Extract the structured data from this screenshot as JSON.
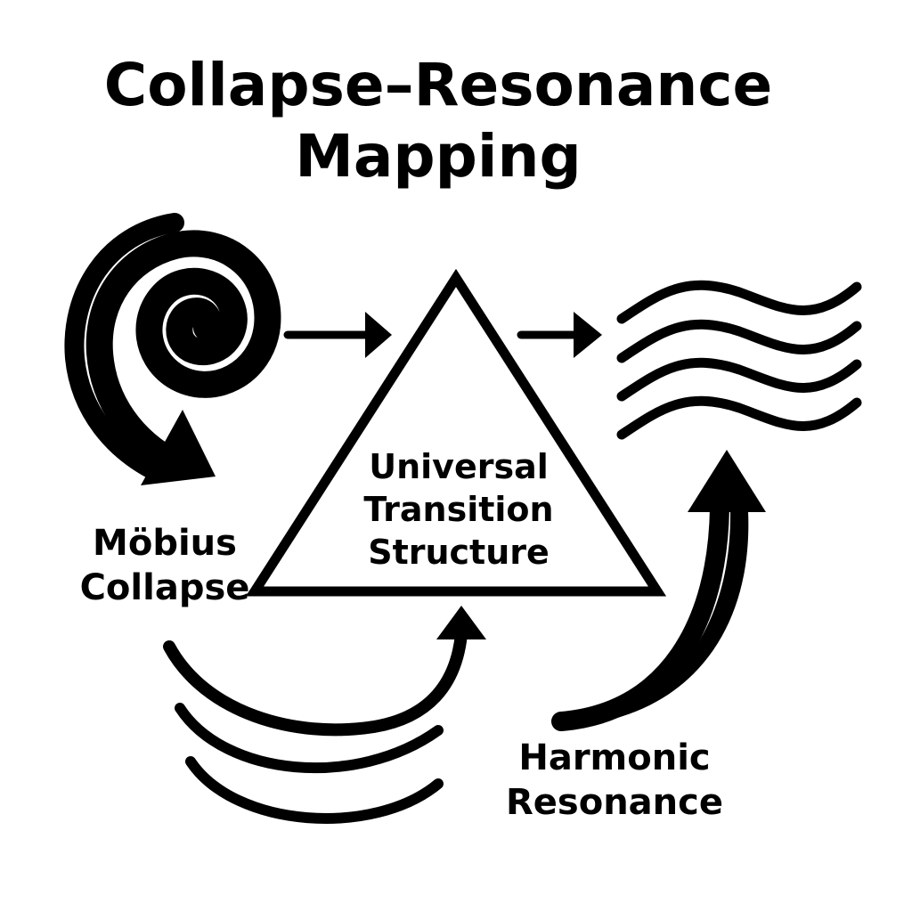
{
  "title": {
    "line1": "Collapse–Resonance",
    "line2": "Mapping"
  },
  "nodes": {
    "center": {
      "line1": "Universal",
      "line2": "Transition",
      "line3": "Structure"
    },
    "left": {
      "line1": "Möbius",
      "line2": "Collapse"
    },
    "right": {
      "line1": "Harmonic",
      "line2": "Resonance"
    }
  },
  "colors": {
    "ink": "#000000",
    "background": "#ffffff"
  },
  "icons": [
    "spiral-icon",
    "wave-lines-icon",
    "triangle-shape",
    "curved-arrow-icon",
    "straight-arrow-icon"
  ]
}
